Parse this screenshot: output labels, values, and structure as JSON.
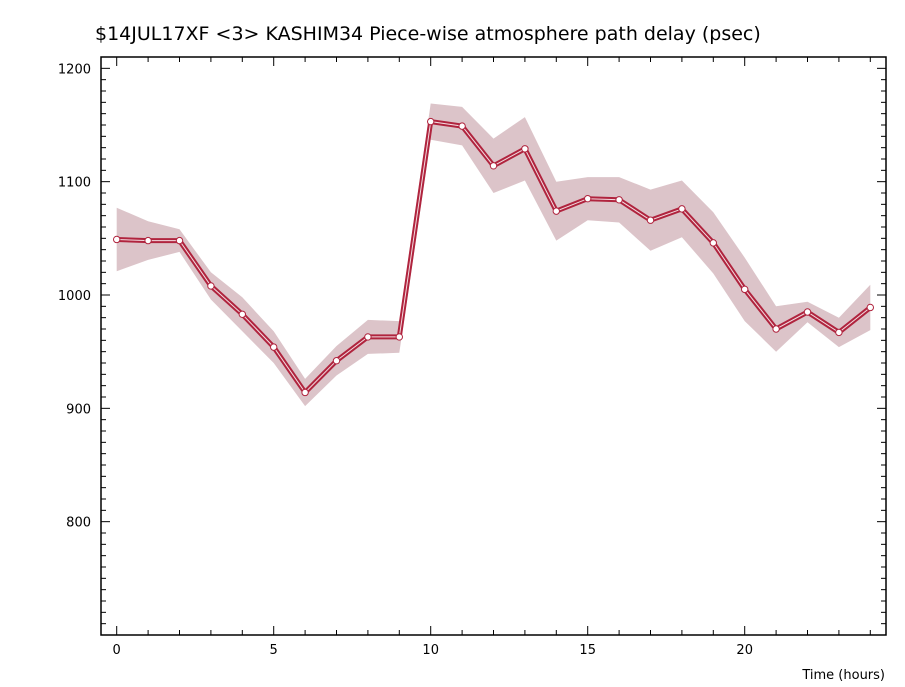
{
  "colors": {
    "line": "#b0243e",
    "band": "#dcc4c9",
    "point_fill": "#ffffff",
    "axis": "#000000"
  },
  "chart_data": {
    "type": "line",
    "title": "$14JUL17XF <3>  KASHIM34  Piece-wise atmosphere path delay (psec)",
    "xlabel": "Time (hours)",
    "ylabel": "",
    "xlim": [
      -0.5,
      24.5
    ],
    "ylim": [
      700,
      1210
    ],
    "x_ticks": [
      0,
      5,
      10,
      15,
      20
    ],
    "x_tick_labels": [
      "0",
      "5",
      "10",
      "15",
      "20"
    ],
    "y_ticks": [
      800,
      900,
      1000,
      1100,
      1200
    ],
    "y_tick_labels": [
      "800",
      "900",
      "1000",
      "1100",
      "1200"
    ],
    "grid": false,
    "series": [
      {
        "x": [
          0,
          1,
          2,
          3,
          4,
          5,
          6,
          7,
          8,
          9,
          10,
          11,
          12,
          13,
          14,
          15,
          16,
          17,
          18,
          19,
          20,
          21,
          22,
          23,
          24
        ],
        "y": [
          1049,
          1048,
          1048,
          1008,
          983,
          954,
          914,
          942,
          963,
          963,
          1153,
          1149,
          1114,
          1129,
          1074,
          1085,
          1084,
          1066,
          1076,
          1046,
          1005,
          970,
          985,
          967,
          989
        ],
        "upper": [
          1077,
          1065,
          1058,
          1020,
          998,
          968,
          926,
          955,
          978,
          977,
          1169,
          1166,
          1138,
          1157,
          1100,
          1104,
          1104,
          1093,
          1101,
          1073,
          1033,
          990,
          994,
          980,
          1009
        ],
        "lower": [
          1021,
          1031,
          1038,
          996,
          968,
          940,
          902,
          929,
          948,
          949,
          1137,
          1132,
          1090,
          1101,
          1048,
          1066,
          1064,
          1039,
          1051,
          1019,
          977,
          950,
          976,
          954,
          969
        ]
      }
    ]
  }
}
